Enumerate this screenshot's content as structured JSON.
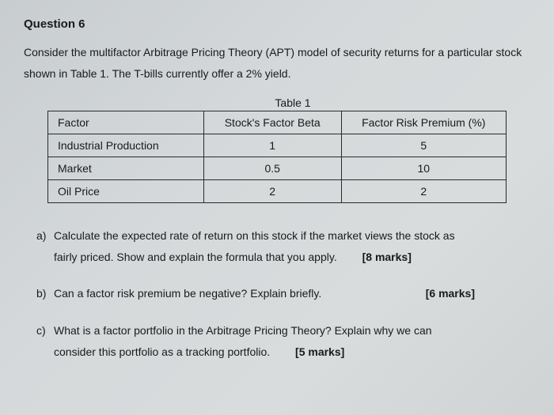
{
  "question": {
    "header": "Question 6",
    "intro": "Consider the multifactor Arbitrage Pricing Theory (APT) model of security returns for a particular stock shown in Table 1. The T-bills currently offer a 2% yield."
  },
  "table": {
    "title": "Table 1",
    "headers": {
      "factor": "Factor",
      "beta": "Stock's Factor Beta",
      "premium": "Factor Risk Premium (%)"
    },
    "rows": [
      {
        "factor": "Industrial Production",
        "beta": "1",
        "premium": "5"
      },
      {
        "factor": "Market",
        "beta": "0.5",
        "premium": "10"
      },
      {
        "factor": "Oil Price",
        "beta": "2",
        "premium": "2"
      }
    ]
  },
  "parts": {
    "a": {
      "label": "a)",
      "text1": "Calculate the expected rate of return on this stock if the market views the stock as",
      "text2": "fairly priced. Show and explain the formula that you apply.",
      "marks": "[8 marks]"
    },
    "b": {
      "label": "b)",
      "text": "Can a factor risk premium be negative? Explain briefly.",
      "marks": "[6 marks]"
    },
    "c": {
      "label": "c)",
      "text1": "What is a factor portfolio in the Arbitrage Pricing Theory? Explain why we can",
      "text2": "consider this portfolio as a tracking portfolio.",
      "marks": "[5 marks]"
    }
  }
}
